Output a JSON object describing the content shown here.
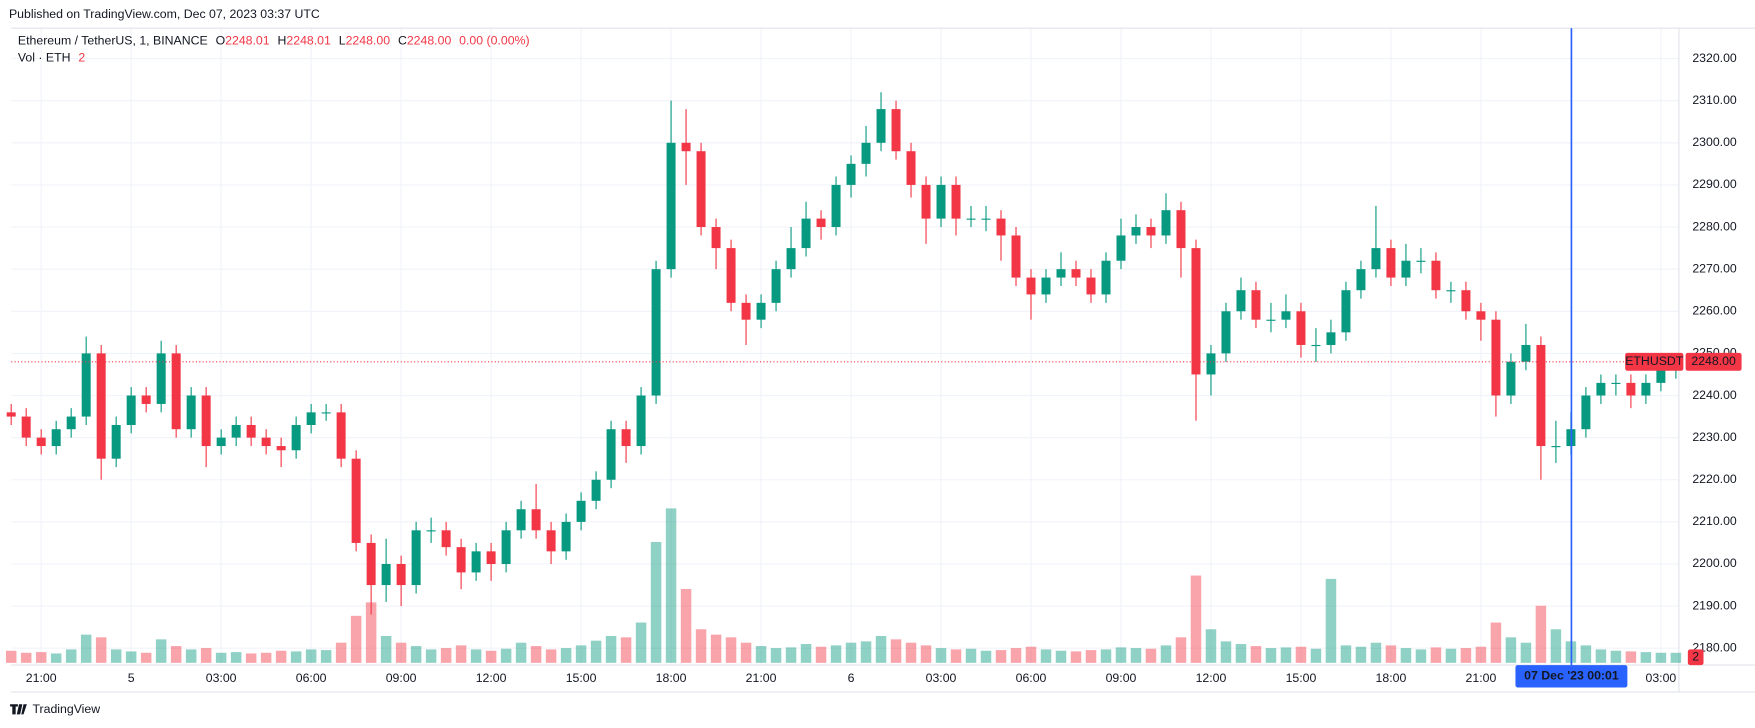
{
  "header": {
    "published": "Published on TradingView.com, Dec 07, 2023 03:37 UTC",
    "brand": "TradingView"
  },
  "chart_data": {
    "type": "candlestick",
    "title": "Ethereum / TetherUS, 1, BINANCE",
    "legend": [
      {
        "key": "O",
        "value": "2248.01"
      },
      {
        "key": "H",
        "value": "2248.01"
      },
      {
        "key": "L",
        "value": "2248.00"
      },
      {
        "key": "C",
        "value": "2248.00"
      }
    ],
    "change": "0.00 (0.00%)",
    "volume_title": "Vol · ETH",
    "volume_value": "2",
    "up_color": "#089981",
    "down_color": "#f23645",
    "grid": true,
    "x": [
      -4,
      -3.5,
      -3,
      -2.5,
      -2,
      -1.5,
      -1,
      -0.5,
      0,
      0.5,
      1,
      1.5,
      2,
      2.5,
      3,
      3.5,
      4,
      4.5,
      5,
      5.5,
      6,
      6.5,
      7,
      7.5,
      8,
      8.5,
      9,
      9.5,
      10,
      10.5,
      11,
      11.5,
      12,
      12.5,
      13,
      13.5,
      14,
      14.5,
      15,
      15.5,
      16,
      16.5,
      17,
      17.5,
      18,
      18.5,
      19,
      19.5,
      20,
      20.5,
      21,
      21.5,
      22,
      22.5,
      23,
      23.5,
      24,
      24.5,
      25,
      25.5,
      26,
      26.5,
      27,
      27.5,
      28,
      28.5,
      29,
      29.5,
      30,
      30.5,
      31,
      31.5,
      32,
      32.5,
      33,
      33.5,
      34,
      34.5,
      35,
      35.5,
      36,
      36.5,
      37,
      37.5,
      38,
      38.5,
      39,
      39.5,
      40,
      40.5,
      41,
      41.5,
      42,
      42.5,
      43,
      43.5,
      44,
      44.5,
      45,
      45.5,
      46,
      46.5,
      47,
      47.5,
      48,
      48.5,
      49,
      49.5,
      50,
      50.5,
      51,
      51.5
    ],
    "open": [
      2236,
      2235,
      2230,
      2228,
      2232,
      2235,
      2250,
      2225,
      2233,
      2240,
      2238,
      2250,
      2232,
      2240,
      2228,
      2230,
      2233,
      2230,
      2228,
      2227,
      2233,
      2236,
      2236,
      2225,
      2205,
      2195,
      2200,
      2195,
      2208,
      2208,
      2204,
      2198,
      2203,
      2200,
      2208,
      2213,
      2208,
      2203,
      2210,
      2215,
      2220,
      2232,
      2228,
      2240,
      2270,
      2300,
      2298,
      2280,
      2275,
      2262,
      2258,
      2262,
      2270,
      2275,
      2282,
      2280,
      2290,
      2295,
      2300,
      2308,
      2298,
      2290,
      2282,
      2290,
      2282,
      2282,
      2282,
      2278,
      2268,
      2264,
      2268,
      2270,
      2268,
      2264,
      2272,
      2278,
      2280,
      2278,
      2284,
      2275,
      2245,
      2250,
      2260,
      2265,
      2258,
      2258,
      2260,
      2252,
      2252,
      2255,
      2265,
      2270,
      2275,
      2268,
      2272,
      2272,
      2265,
      2265,
      2260,
      2258,
      2240,
      2248,
      2252,
      2228,
      2228,
      2232,
      2240,
      2243,
      2243,
      2240,
      2243,
      2246
    ],
    "high": [
      2238,
      2237,
      2232,
      2234,
      2237,
      2254,
      2252,
      2235,
      2242,
      2242,
      2253,
      2252,
      2242,
      2242,
      2232,
      2235,
      2235,
      2232,
      2230,
      2235,
      2238,
      2238,
      2238,
      2227,
      2207,
      2206,
      2202,
      2210,
      2211,
      2210,
      2206,
      2205,
      2205,
      2210,
      2215,
      2219,
      2210,
      2212,
      2217,
      2222,
      2234,
      2234,
      2242,
      2272,
      2310,
      2308,
      2300,
      2282,
      2277,
      2264,
      2264,
      2272,
      2280,
      2286,
      2284,
      2292,
      2297,
      2304,
      2312,
      2310,
      2300,
      2292,
      2292,
      2292,
      2285,
      2285,
      2284,
      2280,
      2270,
      2270,
      2274,
      2272,
      2270,
      2274,
      2282,
      2283,
      2282,
      2288,
      2286,
      2277,
      2252,
      2262,
      2268,
      2267,
      2262,
      2264,
      2262,
      2256,
      2258,
      2267,
      2272,
      2285,
      2277,
      2276,
      2275,
      2274,
      2267,
      2267,
      2262,
      2260,
      2250,
      2257,
      2254,
      2234,
      2236,
      2242,
      2245,
      2245,
      2245,
      2245,
      2248,
      2249
    ],
    "low": [
      2233,
      2228,
      2226,
      2226,
      2230,
      2233,
      2220,
      2223,
      2231,
      2236,
      2236,
      2230,
      2230,
      2223,
      2226,
      2228,
      2228,
      2226,
      2223,
      2225,
      2231,
      2234,
      2223,
      2203,
      2188,
      2191,
      2190,
      2193,
      2205,
      2202,
      2194,
      2196,
      2196,
      2198,
      2206,
      2206,
      2200,
      2201,
      2208,
      2213,
      2218,
      2224,
      2226,
      2238,
      2268,
      2290,
      2278,
      2270,
      2260,
      2252,
      2256,
      2260,
      2268,
      2273,
      2277,
      2278,
      2287,
      2292,
      2298,
      2296,
      2287,
      2276,
      2280,
      2278,
      2280,
      2279,
      2272,
      2266,
      2258,
      2262,
      2266,
      2266,
      2262,
      2262,
      2270,
      2276,
      2275,
      2276,
      2268,
      2234,
      2240,
      2248,
      2258,
      2256,
      2255,
      2256,
      2249,
      2248,
      2250,
      2253,
      2263,
      2268,
      2266,
      2266,
      2269,
      2263,
      2262,
      2258,
      2253,
      2235,
      2238,
      2246,
      2220,
      2224,
      2226,
      2230,
      2238,
      2240,
      2237,
      2238,
      2241,
      2244
    ],
    "close": [
      2235,
      2230,
      2228,
      2232,
      2235,
      2250,
      2225,
      2233,
      2240,
      2238,
      2250,
      2232,
      2240,
      2228,
      2230,
      2233,
      2230,
      2228,
      2227,
      2233,
      2236,
      2236,
      2225,
      2205,
      2195,
      2200,
      2195,
      2208,
      2208,
      2204,
      2198,
      2203,
      2200,
      2208,
      2213,
      2208,
      2203,
      2210,
      2215,
      2220,
      2232,
      2228,
      2240,
      2270,
      2300,
      2298,
      2280,
      2275,
      2262,
      2258,
      2262,
      2270,
      2275,
      2282,
      2280,
      2290,
      2295,
      2300,
      2308,
      2298,
      2290,
      2282,
      2290,
      2282,
      2282,
      2282,
      2278,
      2268,
      2264,
      2268,
      2270,
      2268,
      2264,
      2272,
      2278,
      2280,
      2278,
      2284,
      2275,
      2245,
      2250,
      2260,
      2265,
      2258,
      2258,
      2260,
      2252,
      2252,
      2255,
      2265,
      2270,
      2275,
      2268,
      2272,
      2272,
      2265,
      2265,
      2260,
      2258,
      2240,
      2248,
      2252,
      2228,
      2228,
      2232,
      2240,
      2243,
      2243,
      2240,
      2243,
      2246,
      2248
    ],
    "volume": [
      180,
      150,
      160,
      140,
      200,
      420,
      380,
      200,
      170,
      150,
      350,
      250,
      200,
      220,
      150,
      160,
      140,
      150,
      180,
      170,
      200,
      190,
      300,
      700,
      900,
      400,
      300,
      250,
      200,
      220,
      260,
      200,
      180,
      210,
      300,
      250,
      200,
      220,
      260,
      330,
      400,
      380,
      600,
      1800,
      2300,
      1100,
      500,
      420,
      380,
      300,
      250,
      220,
      230,
      280,
      240,
      260,
      300,
      320,
      400,
      350,
      300,
      260,
      220,
      200,
      210,
      180,
      190,
      220,
      240,
      200,
      180,
      170,
      190,
      200,
      230,
      220,
      210,
      260,
      380,
      1300,
      500,
      320,
      280,
      250,
      220,
      230,
      240,
      210,
      1250,
      260,
      240,
      300,
      260,
      220,
      200,
      230,
      210,
      220,
      240,
      600,
      380,
      300,
      850,
      500,
      320,
      260,
      200,
      180,
      170,
      160,
      150,
      150
    ],
    "vlim": [
      0,
      3000
    ],
    "xlim": [
      -4,
      51.6
    ],
    "xticks": [
      {
        "value": -3,
        "label": "21:00"
      },
      {
        "value": 0,
        "label": "5"
      },
      {
        "value": 3,
        "label": "03:00"
      },
      {
        "value": 6,
        "label": "06:00"
      },
      {
        "value": 9,
        "label": "09:00"
      },
      {
        "value": 12,
        "label": "12:00"
      },
      {
        "value": 15,
        "label": "15:00"
      },
      {
        "value": 18,
        "label": "18:00"
      },
      {
        "value": 21,
        "label": "21:00"
      },
      {
        "value": 24,
        "label": "6"
      },
      {
        "value": 27,
        "label": "03:00"
      },
      {
        "value": 30,
        "label": "06:00"
      },
      {
        "value": 33,
        "label": "09:00"
      },
      {
        "value": 36,
        "label": "12:00"
      },
      {
        "value": 39,
        "label": "15:00"
      },
      {
        "value": 42,
        "label": "18:00"
      },
      {
        "value": 45,
        "label": "21:00"
      },
      {
        "value": 51,
        "label": "03:00"
      }
    ],
    "ylim": [
      2176,
      2327.2
    ],
    "yticks": [
      {
        "value": 2180,
        "label": "2180.00"
      },
      {
        "value": 2190,
        "label": "2190.00"
      },
      {
        "value": 2200,
        "label": "2200.00"
      },
      {
        "value": 2210,
        "label": "2210.00"
      },
      {
        "value": 2220,
        "label": "2220.00"
      },
      {
        "value": 2230,
        "label": "2230.00"
      },
      {
        "value": 2240,
        "label": "2240.00"
      },
      {
        "value": 2250,
        "label": "2250.00"
      },
      {
        "value": 2260,
        "label": "2260.00"
      },
      {
        "value": 2270,
        "label": "2270.00"
      },
      {
        "value": 2280,
        "label": "2280.00"
      },
      {
        "value": 2290,
        "label": "2290.00"
      },
      {
        "value": 2300,
        "label": "2300.00"
      },
      {
        "value": 2310,
        "label": "2310.00"
      },
      {
        "value": 2320,
        "label": "2320.00"
      }
    ],
    "last_price": {
      "symbol": "ETHUSDT",
      "value": 2248,
      "label": "2248.00",
      "color": "#f23645"
    },
    "crosshair": {
      "x": 48.017,
      "label": "07 Dec '23   00:01",
      "color": "#2962ff"
    }
  }
}
